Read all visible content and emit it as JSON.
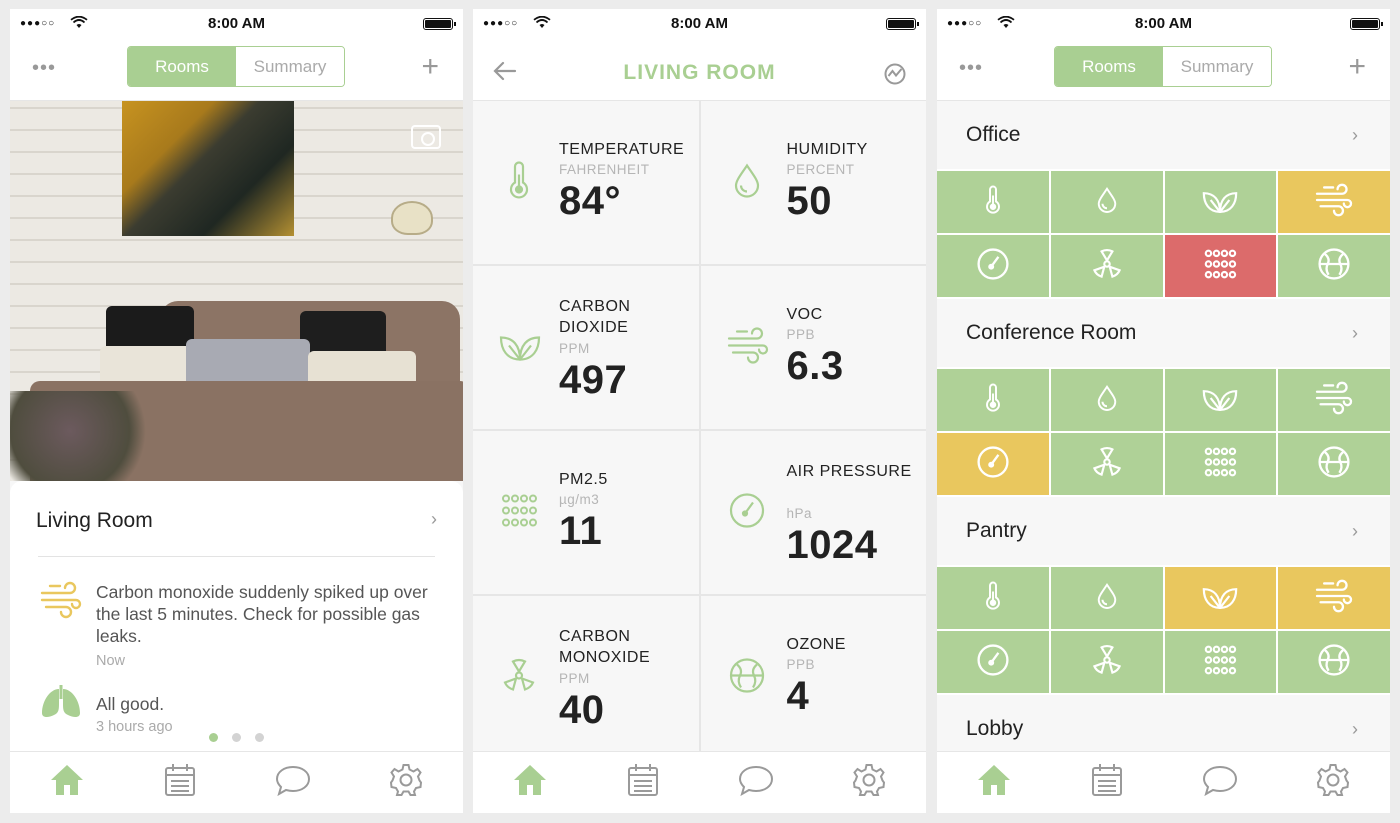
{
  "status_bar": {
    "time": "8:00 AM",
    "signal": "●●●○○"
  },
  "colors": {
    "accent": "#a9cf92",
    "warning": "#e9c75e",
    "alert": "#dc6b6b",
    "tile_green": "#afd197",
    "value_orange": "#e8c79a"
  },
  "segmented": {
    "rooms": "Rooms",
    "summary": "Summary"
  },
  "icons": {
    "more": "more-dots-icon",
    "add": "plus-icon",
    "camera": "camera-icon",
    "back": "back-arrow-icon",
    "chart": "chart-icon",
    "tabs": [
      "home-icon",
      "calendar-icon",
      "chat-icon",
      "gear-icon"
    ]
  },
  "screen1": {
    "room_title": "Living Room",
    "notifications": [
      {
        "icon": "wind-icon",
        "text": "Carbon monoxide suddenly spiked up over the last 5 minutes. Check for possible gas leaks.",
        "time": "Now"
      },
      {
        "icon": "lungs-icon",
        "text": "All good.",
        "time": "3 hours ago"
      }
    ],
    "pager": {
      "count": 3,
      "active": 1
    }
  },
  "screen2": {
    "title": "LIVING ROOM",
    "metrics": [
      {
        "label": "TEMPERATURE",
        "unit": "FAHRENHEIT",
        "value": "84°",
        "icon": "thermometer-icon",
        "status": "warning"
      },
      {
        "label": "HUMIDITY",
        "unit": "PERCENT",
        "value": "50",
        "icon": "drop-icon",
        "status": "good"
      },
      {
        "label": "CARBON DIOXIDE",
        "unit": "PPM",
        "value": "497",
        "icon": "leaf-icon",
        "status": "good"
      },
      {
        "label": "VOC",
        "unit": "PPB",
        "value": "6.3",
        "icon": "wind-icon",
        "status": "good"
      },
      {
        "label": "PM2.5",
        "unit": "µg/m3",
        "value": "11",
        "icon": "particles-icon",
        "status": "good"
      },
      {
        "label": "AIR PRESSURE",
        "unit": "hPa",
        "value": "1024",
        "icon": "gauge-icon",
        "status": "good"
      },
      {
        "label": "CARBON MONOXIDE",
        "unit": "PPM",
        "value": "40",
        "icon": "radiation-icon",
        "status": "warning"
      },
      {
        "label": "OZONE",
        "unit": "PPB",
        "value": "4",
        "icon": "globe-icon",
        "status": "good"
      }
    ]
  },
  "screen3": {
    "tile_icons": [
      "thermometer-icon",
      "drop-icon",
      "leaf-icon",
      "wind-icon",
      "gauge-icon",
      "radiation-icon",
      "particles-icon",
      "globe-icon"
    ],
    "rooms": [
      {
        "name": "Office",
        "tiles": [
          "g",
          "g",
          "g",
          "y",
          "g",
          "g",
          "r",
          "g"
        ]
      },
      {
        "name": "Conference Room",
        "tiles": [
          "g",
          "g",
          "g",
          "g",
          "y",
          "g",
          "g",
          "g"
        ]
      },
      {
        "name": "Pantry",
        "tiles": [
          "g",
          "g",
          "y",
          "y",
          "g",
          "g",
          "g",
          "g"
        ]
      },
      {
        "name": "Lobby",
        "tiles": []
      }
    ]
  }
}
